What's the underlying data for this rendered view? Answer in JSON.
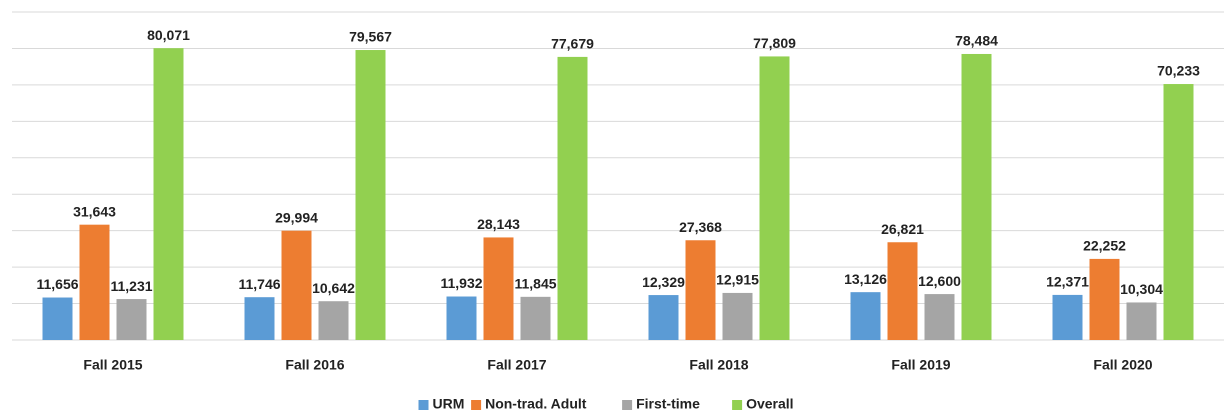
{
  "chart_data": {
    "type": "bar",
    "categories": [
      "Fall 2015",
      "Fall 2016",
      "Fall 2017",
      "Fall 2018",
      "Fall 2019",
      "Fall 2020"
    ],
    "series": [
      {
        "name": "URM",
        "color": "#5b9bd5",
        "values": [
          11656,
          11746,
          11932,
          12329,
          13126,
          12371
        ],
        "value_labels": [
          "11,656",
          "11,746",
          "11,932",
          "12,329",
          "13,126",
          "12,371"
        ]
      },
      {
        "name": "Non-trad. Adult",
        "color": "#ed7d31",
        "values": [
          31643,
          29994,
          28143,
          27368,
          26821,
          22252
        ],
        "value_labels": [
          "31,643",
          "29,994",
          "28,143",
          "27,368",
          "26,821",
          "22,252"
        ]
      },
      {
        "name": "First-time",
        "color": "#a5a5a5",
        "values": [
          11231,
          10642,
          11845,
          12915,
          12600,
          10304
        ],
        "value_labels": [
          "11,231",
          "10,642",
          "11,845",
          "12,915",
          "12,600",
          "10,304"
        ]
      },
      {
        "name": "Overall",
        "color": "#92d050",
        "values": [
          80071,
          79567,
          77679,
          77809,
          78484,
          70233
        ],
        "value_labels": [
          "80,071",
          "79,567",
          "77,679",
          "77,809",
          "78,484",
          "70,233"
        ]
      }
    ],
    "ylim": [
      0,
      90000
    ],
    "yticks": [
      0,
      10000,
      20000,
      30000,
      40000,
      50000,
      60000,
      70000,
      80000,
      90000
    ],
    "grid": true,
    "legend": "bottom"
  }
}
